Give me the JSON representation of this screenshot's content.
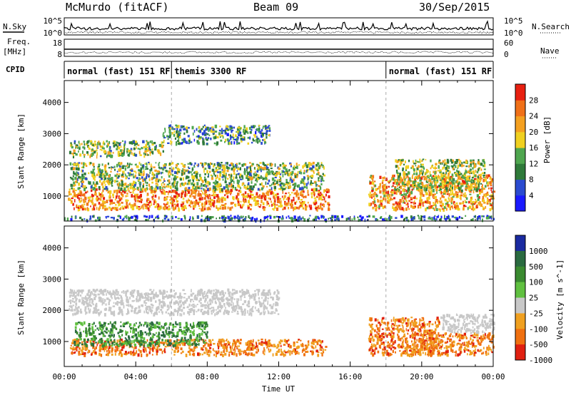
{
  "header": {
    "title": "McMurdo (fitACF)",
    "beam": "Beam 09",
    "date": "30/Sep/2015"
  },
  "status_panels": {
    "nsky_label": "N.Sky",
    "nsearch_label": "N.Search",
    "freq_label": "Freq.",
    "freq_unit": "[MHz]",
    "nave_label": "Nave",
    "cpid_label": "CPID",
    "noise_ticks_left": [
      "10^5",
      "10^0"
    ],
    "noise_ticks_right": [
      "10^5",
      "10^0"
    ],
    "freq_ticks": [
      "18",
      "8"
    ],
    "nave_ticks": [
      "60",
      "0"
    ],
    "cpid_segments": [
      {
        "label": "normal (fast) 151 RF",
        "start": 0.0,
        "end": 6.0
      },
      {
        "label": "themis 3300 RF",
        "start": 6.0,
        "end": 18.0
      },
      {
        "label": "normal (fast) 151 RF",
        "start": 18.0,
        "end": 24.0
      }
    ]
  },
  "chart_data": [
    {
      "type": "heatmap",
      "name": "power-panel",
      "ylabel": "Slant Range [km]",
      "yticks": [
        "1000",
        "2000",
        "3000",
        "4000"
      ],
      "ylim": [
        200,
        4700
      ],
      "xlim": [
        0,
        24
      ],
      "colorbar": {
        "label": "Power [dB]",
        "ticks": [
          "4",
          "8",
          "12",
          "16",
          "20",
          "24",
          "28"
        ],
        "range": [
          0,
          32
        ],
        "colors": [
          "#1a1aff",
          "#2b4bd0",
          "#2f7a3a",
          "#4fa64f",
          "#f0d020",
          "#f4a020",
          "#f07018",
          "#e82010"
        ]
      },
      "echo_regions": [
        {
          "x0": 0.2,
          "x1": 14.8,
          "y0": 600,
          "y1": 1250,
          "level": 0.75
        },
        {
          "x0": 0.3,
          "x1": 14.5,
          "y0": 1250,
          "y1": 2100,
          "level": 0.45
        },
        {
          "x0": 0.2,
          "x1": 5.5,
          "y0": 2300,
          "y1": 2800,
          "level": 0.45
        },
        {
          "x0": 5.5,
          "x1": 11.5,
          "y0": 2700,
          "y1": 3300,
          "level": 0.35
        },
        {
          "x0": 17.0,
          "x1": 24.0,
          "y0": 600,
          "y1": 1700,
          "level": 0.7
        },
        {
          "x0": 18.5,
          "x1": 23.5,
          "y0": 1200,
          "y1": 2200,
          "level": 0.5
        },
        {
          "x0": 0.0,
          "x1": 24.0,
          "y0": 250,
          "y1": 400,
          "level": 0.25
        }
      ]
    },
    {
      "type": "heatmap",
      "name": "velocity-panel",
      "ylabel": "Slant Range [km]",
      "yticks": [
        "1000",
        "2000",
        "3000",
        "4000"
      ],
      "ylim": [
        200,
        4700
      ],
      "xlim": [
        0,
        24
      ],
      "xticks": [
        "00:00",
        "04:00",
        "08:00",
        "12:00",
        "16:00",
        "20:00",
        "00:00"
      ],
      "xlabel": "Time UT",
      "colorbar": {
        "label": "Velocity [m s^-1]",
        "ticks": [
          "1000",
          "500",
          "100",
          "25",
          "-25",
          "-100",
          "-500",
          "-1000"
        ],
        "colors": [
          "#1a2aa0",
          "#2a6a40",
          "#3a8a30",
          "#60c040",
          "#c8c8c8",
          "#f0a020",
          "#f07010",
          "#e02010"
        ]
      },
      "echo_regions": [
        {
          "x0": 0.3,
          "x1": 14.6,
          "y0": 600,
          "y1": 1100,
          "kind": "negative"
        },
        {
          "x0": 0.5,
          "x1": 8.0,
          "y0": 900,
          "y1": 1650,
          "kind": "positive"
        },
        {
          "x0": 0.2,
          "x1": 12.0,
          "y0": 1900,
          "y1": 2700,
          "kind": "grey"
        },
        {
          "x0": 17.0,
          "x1": 21.0,
          "y0": 600,
          "y1": 1800,
          "kind": "negative"
        },
        {
          "x0": 19.5,
          "x1": 24.0,
          "y0": 600,
          "y1": 1300,
          "kind": "negative"
        },
        {
          "x0": 21.0,
          "x1": 24.0,
          "y0": 1300,
          "y1": 1900,
          "kind": "grey"
        }
      ]
    }
  ]
}
